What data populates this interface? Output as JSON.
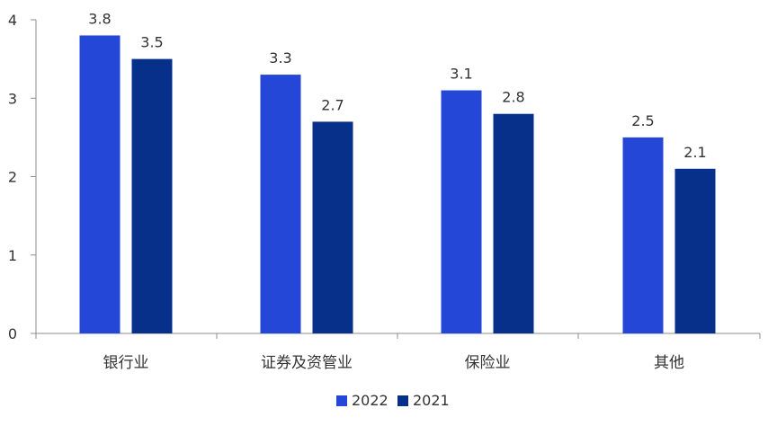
{
  "chart_data": {
    "type": "bar",
    "categories": [
      "银行业",
      "证券及资管业",
      "保险业",
      "其他"
    ],
    "series": [
      {
        "name": "2022",
        "values": [
          3.8,
          3.3,
          3.1,
          2.5
        ],
        "color": "#2447d8"
      },
      {
        "name": "2021",
        "values": [
          3.5,
          2.7,
          2.8,
          2.1
        ],
        "color": "#07308a"
      }
    ],
    "data_labels": [
      [
        "3.8",
        "3.3",
        "3.1",
        "2.5"
      ],
      [
        "3.5",
        "2.7",
        "2.8",
        "2.1"
      ]
    ],
    "ylim": [
      0,
      4
    ],
    "yticks": [
      "0",
      "1",
      "2",
      "3",
      "4"
    ],
    "grid": false,
    "legend": "bottom-center"
  }
}
